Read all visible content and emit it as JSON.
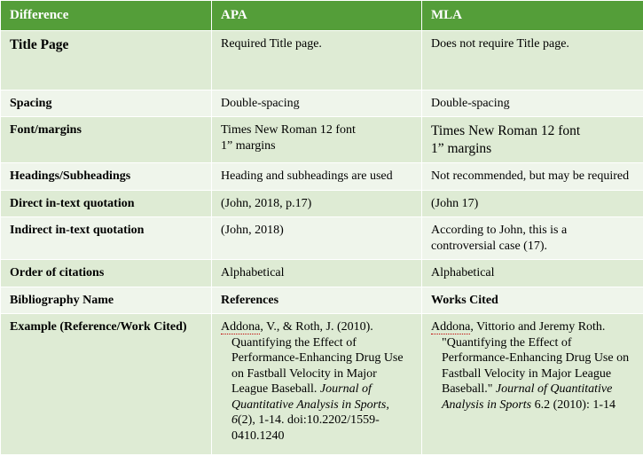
{
  "header": {
    "c1": "Difference",
    "c2": "APA",
    "c3": "MLA"
  },
  "rows": {
    "title_page": {
      "label": "Title Page",
      "apa": "Required Title page.",
      "mla": "Does not require Title page."
    },
    "spacing": {
      "label": "Spacing",
      "apa": "Double-spacing",
      "mla": "Double-spacing"
    },
    "font": {
      "label": "Font/margins",
      "apa_l1": "Times New Roman 12 font",
      "apa_l2": "1” margins",
      "mla_l1": "Times New Roman 12 font",
      "mla_l2": "1” margins"
    },
    "headings": {
      "label": "Headings/Subheadings",
      "apa": "Heading and subheadings are used",
      "mla": "Not recommended, but may be required"
    },
    "direct": {
      "label": "Direct in-text quotation",
      "apa": "(John, 2018, p.17)",
      "mla": "(John 17)"
    },
    "indirect": {
      "label": "Indirect in-text quotation",
      "apa": "(John, 2018)",
      "mla": "According to John, this is a controversial case (17)."
    },
    "order": {
      "label": "Order of citations",
      "apa": "Alphabetical",
      "mla": "Alphabetical"
    },
    "bib": {
      "label": "Bibliography Name",
      "apa": "References",
      "mla": "Works Cited"
    },
    "example": {
      "label": "Example (Reference/Work Cited)",
      "apa_author": "Addona",
      "apa_rest1": ", V., & Roth, J. (2010). Quantifying the Effect of Performance-Enhancing Drug Use on Fastball Velocity in Major League Baseball.   ",
      "apa_journal": "Journal of Quantitative Analysis in Sports, 6",
      "apa_rest2": "(2), 1-14. doi:10.2202/1559-0410.1240",
      "mla_author": "Addona",
      "mla_rest1": ", Vittorio and Jeremy Roth. \"Quantifying the Effect of Performance-Enhancing Drug Use on Fastball Velocity in Major League Baseball.\"   ",
      "mla_journal": "Journal of Quantitative Analysis in Sports",
      "mla_rest2": " 6.2 (2010): 1-14"
    }
  },
  "colors": {
    "header_bg": "#549e39",
    "odd_bg": "#deebd4",
    "even_bg": "#eff5eb",
    "spell_underline": "#c00000"
  }
}
